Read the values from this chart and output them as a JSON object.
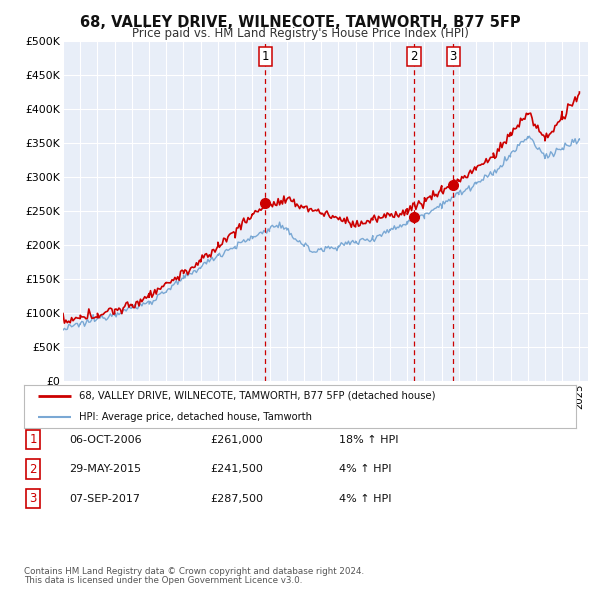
{
  "title": "68, VALLEY DRIVE, WILNECOTE, TAMWORTH, B77 5FP",
  "subtitle": "Price paid vs. HM Land Registry's House Price Index (HPI)",
  "background_color": "#ffffff",
  "plot_bg_color": "#e8eef8",
  "grid_color": "#ffffff",
  "red_line_color": "#cc0000",
  "blue_line_color": "#7aa8d4",
  "ylim": [
    0,
    500000
  ],
  "yticks": [
    0,
    50000,
    100000,
    150000,
    200000,
    250000,
    300000,
    350000,
    400000,
    450000,
    500000
  ],
  "ytick_labels": [
    "£0",
    "£50K",
    "£100K",
    "£150K",
    "£200K",
    "£250K",
    "£300K",
    "£350K",
    "£400K",
    "£450K",
    "£500K"
  ],
  "xmin": 1995.0,
  "xmax": 2025.5,
  "tx1_x": 2006.75,
  "tx1_y": 261000,
  "tx2_x": 2015.4,
  "tx2_y": 241500,
  "tx3_x": 2017.67,
  "tx3_y": 287500,
  "vline_color": "#cc0000",
  "legend_red_label": "68, VALLEY DRIVE, WILNECOTE, TAMWORTH, B77 5FP (detached house)",
  "legend_blue_label": "HPI: Average price, detached house, Tamworth",
  "table_rows": [
    {
      "num": "1",
      "date": "06-OCT-2006",
      "price": "£261,000",
      "change": "18% ↑ HPI"
    },
    {
      "num": "2",
      "date": "29-MAY-2015",
      "price": "£241,500",
      "change": "4% ↑ HPI"
    },
    {
      "num": "3",
      "date": "07-SEP-2017",
      "price": "£287,500",
      "change": "4% ↑ HPI"
    }
  ],
  "footnote1": "Contains HM Land Registry data © Crown copyright and database right 2024.",
  "footnote2": "This data is licensed under the Open Government Licence v3.0."
}
